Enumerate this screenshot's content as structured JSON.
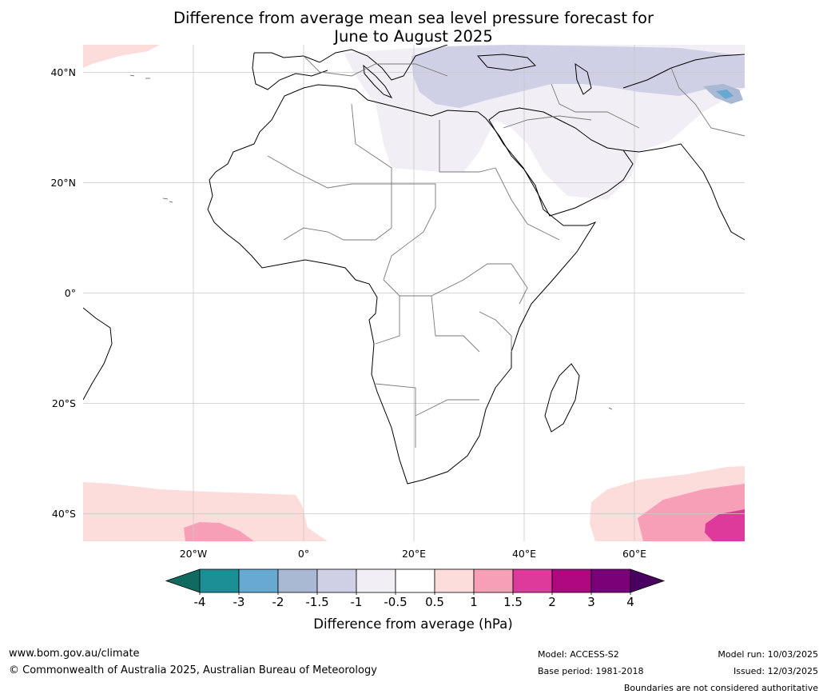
{
  "title": {
    "line1": "Difference from average mean sea level pressure forecast for",
    "line2": "June to August 2025"
  },
  "map": {
    "lon_range": [
      -40,
      80
    ],
    "lat_range": [
      -45,
      45
    ],
    "lat_ticks": [
      {
        "value": 40,
        "label": "40°N"
      },
      {
        "value": 20,
        "label": "20°N"
      },
      {
        "value": 0,
        "label": "0°"
      },
      {
        "value": -20,
        "label": "20°S"
      },
      {
        "value": -40,
        "label": "40°S"
      }
    ],
    "lon_ticks": [
      {
        "value": -20,
        "label": "20°W"
      },
      {
        "value": 0,
        "label": "0°"
      },
      {
        "value": 20,
        "label": "20°E"
      },
      {
        "value": 40,
        "label": "40°E"
      },
      {
        "value": 60,
        "label": "60°E"
      }
    ],
    "grid": true
  },
  "colorbar": {
    "title": "Difference from average (hPa)",
    "levels": [
      "-4",
      "-3",
      "-2",
      "-1.5",
      "-1",
      "-0.5",
      "0.5",
      "1",
      "1.5",
      "2",
      "3",
      "4"
    ],
    "colors": [
      "#1a8f95",
      "#68a9d1",
      "#a9b9d4",
      "#cfd0e5",
      "#f2eef5",
      "#ffffff",
      "#fddcdc",
      "#f89fb8",
      "#de3a9b",
      "#b0087f",
      "#7a0177"
    ],
    "under_color": "#0f6b5f",
    "over_color": "#4a0060"
  },
  "footer": {
    "website": "www.bom.gov.au/climate",
    "copyright": "© Commonwealth of Australia 2025, Australian Bureau of Meteorology",
    "model": "Model: ACCESS-S2",
    "base_period": "Base period: 1981-2018",
    "model_run": "Model run: 10/03/2025",
    "issued": "Issued: 12/03/2025",
    "disclaimer": "Boundaries are not considered authoritative"
  }
}
